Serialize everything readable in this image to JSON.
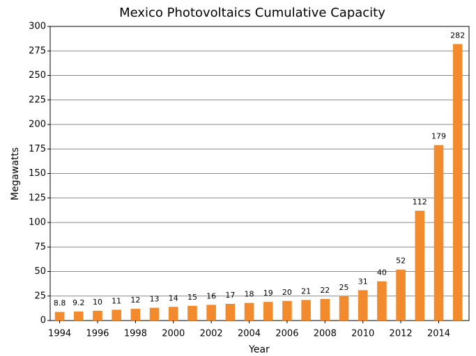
{
  "chart_data": {
    "type": "bar",
    "title": "Mexico Photovoltaics Cumulative Capacity",
    "x_label": "Year",
    "y_label": "Megawatts",
    "x": [
      1994,
      1995,
      1996,
      1997,
      1998,
      1999,
      2000,
      2001,
      2002,
      2003,
      2004,
      2005,
      2006,
      2007,
      2008,
      2009,
      2010,
      2011,
      2012,
      2013,
      2014,
      2015
    ],
    "values": [
      8.8,
      9.2,
      10,
      11,
      12,
      13,
      14,
      15,
      16,
      17,
      18,
      19,
      20,
      21,
      22,
      25,
      31,
      40,
      52,
      112,
      179,
      282
    ],
    "color": "#f28a2e",
    "xlim": [
      1993.5,
      2015.6
    ],
    "xticks": [
      1994,
      1996,
      1998,
      2000,
      2002,
      2004,
      2006,
      2008,
      2010,
      2012,
      2014
    ],
    "ylim": [
      0,
      300
    ],
    "yticks": [
      0,
      25,
      50,
      75,
      100,
      125,
      150,
      175,
      200,
      225,
      250,
      275,
      300
    ],
    "grid": true
  }
}
